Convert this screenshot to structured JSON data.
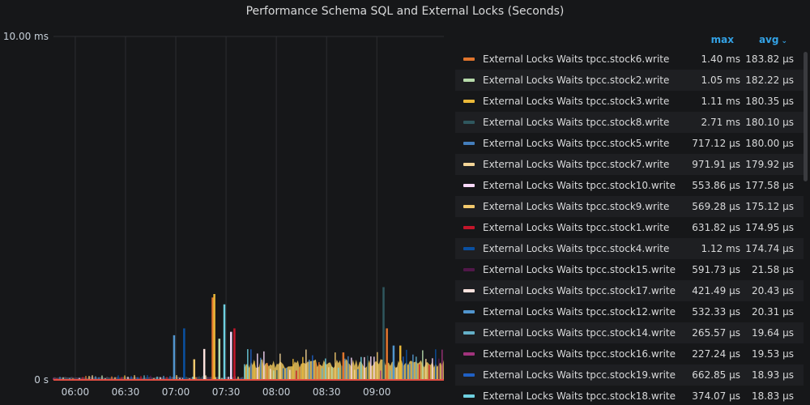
{
  "panel": {
    "title": "Performance Schema SQL and External Locks (Seconds)"
  },
  "legend": {
    "col_max": "max",
    "col_avg": "avg",
    "items": [
      {
        "name": "External Locks Waits tpcc.stock6.write",
        "max": "1.40 ms",
        "avg": "183.82 µs",
        "color": "#e0752d"
      },
      {
        "name": "External Locks Waits tpcc.stock2.write",
        "max": "1.05 ms",
        "avg": "182.22 µs",
        "color": "#b7dbab"
      },
      {
        "name": "External Locks Waits tpcc.stock3.write",
        "max": "1.11 ms",
        "avg": "180.35 µs",
        "color": "#eab839"
      },
      {
        "name": "External Locks Waits tpcc.stock8.write",
        "max": "2.71 ms",
        "avg": "180.10 µs",
        "color": "#2f575e"
      },
      {
        "name": "External Locks Waits tpcc.stock5.write",
        "max": "717.12 µs",
        "avg": "180.00 µs",
        "color": "#447ebc"
      },
      {
        "name": "External Locks Waits tpcc.stock7.write",
        "max": "971.91 µs",
        "avg": "179.92 µs",
        "color": "#f4d598"
      },
      {
        "name": "External Locks Waits tpcc.stock10.write",
        "max": "553.86 µs",
        "avg": "177.58 µs",
        "color": "#f9d9f9"
      },
      {
        "name": "External Locks Waits tpcc.stock9.write",
        "max": "569.28 µs",
        "avg": "175.12 µs",
        "color": "#f2c96d"
      },
      {
        "name": "External Locks Waits tpcc.stock1.write",
        "max": "631.82 µs",
        "avg": "174.95 µs",
        "color": "#c4162a"
      },
      {
        "name": "External Locks Waits tpcc.stock4.write",
        "max": "1.12 ms",
        "avg": "174.74 µs",
        "color": "#0a50a1"
      },
      {
        "name": "External Locks Waits tpcc.stock15.write",
        "max": "591.73 µs",
        "avg": "21.58 µs",
        "color": "#511749"
      },
      {
        "name": "External Locks Waits tpcc.stock17.write",
        "max": "421.49 µs",
        "avg": "20.43 µs",
        "color": "#fce2de"
      },
      {
        "name": "External Locks Waits tpcc.stock12.write",
        "max": "532.33 µs",
        "avg": "20.31 µs",
        "color": "#5195ce"
      },
      {
        "name": "External Locks Waits tpcc.stock14.write",
        "max": "265.57 µs",
        "avg": "19.64 µs",
        "color": "#64b0c8"
      },
      {
        "name": "External Locks Waits tpcc.stock16.write",
        "max": "227.24 µs",
        "avg": "19.53 µs",
        "color": "#a1337c"
      },
      {
        "name": "External Locks Waits tpcc.stock19.write",
        "max": "662.85 µs",
        "avg": "18.93 µs",
        "color": "#1f60c4"
      },
      {
        "name": "External Locks Waits tpcc.stock18.write",
        "max": "374.07 µs",
        "avg": "18.83 µs",
        "color": "#6ed0e0"
      }
    ]
  },
  "chart_data": {
    "type": "area",
    "title": "Performance Schema SQL and External Locks (Seconds)",
    "y_ticks": [
      "10.00 ms",
      "0 s"
    ],
    "ylim_ms": [
      0,
      10
    ],
    "x_ticks": [
      "06:00",
      "06:30",
      "07:00",
      "07:30",
      "08:00",
      "08:30",
      "09:00"
    ],
    "xlim": [
      "05:47",
      "09:40"
    ],
    "grid": true,
    "spikes": [
      {
        "time": "06:59",
        "value_ms": 1.3,
        "color": "#5195ce"
      },
      {
        "time": "07:05",
        "value_ms": 1.5,
        "color": "#0a50a1"
      },
      {
        "time": "07:11",
        "value_ms": 0.6,
        "color": "#f2c96d"
      },
      {
        "time": "07:17",
        "value_ms": 0.9,
        "color": "#fce2de"
      },
      {
        "time": "07:22",
        "value_ms": 2.4,
        "color": "#e0752d"
      },
      {
        "time": "07:23",
        "value_ms": 2.5,
        "color": "#eab839"
      },
      {
        "time": "07:26",
        "value_ms": 1.2,
        "color": "#b7dbab"
      },
      {
        "time": "07:29",
        "value_ms": 2.2,
        "color": "#6ed0e0"
      },
      {
        "time": "07:33",
        "value_ms": 1.4,
        "color": "#f9d9f9"
      },
      {
        "time": "07:35",
        "value_ms": 1.5,
        "color": "#c4162a"
      },
      {
        "time": "08:40",
        "value_ms": 0.8,
        "color": "#e0752d"
      },
      {
        "time": "09:04",
        "value_ms": 2.7,
        "color": "#2f575e"
      },
      {
        "time": "09:06",
        "value_ms": 1.5,
        "color": "#e0752d"
      },
      {
        "time": "09:10",
        "value_ms": 1.0,
        "color": "#5195ce"
      },
      {
        "time": "09:14",
        "value_ms": 1.0,
        "color": "#eab839"
      }
    ],
    "baseline_segments": [
      {
        "from": "05:47",
        "to": "07:41",
        "level_ms": 0.07
      },
      {
        "from": "07:41",
        "to": "09:40",
        "level_ms": 0.45
      }
    ]
  }
}
